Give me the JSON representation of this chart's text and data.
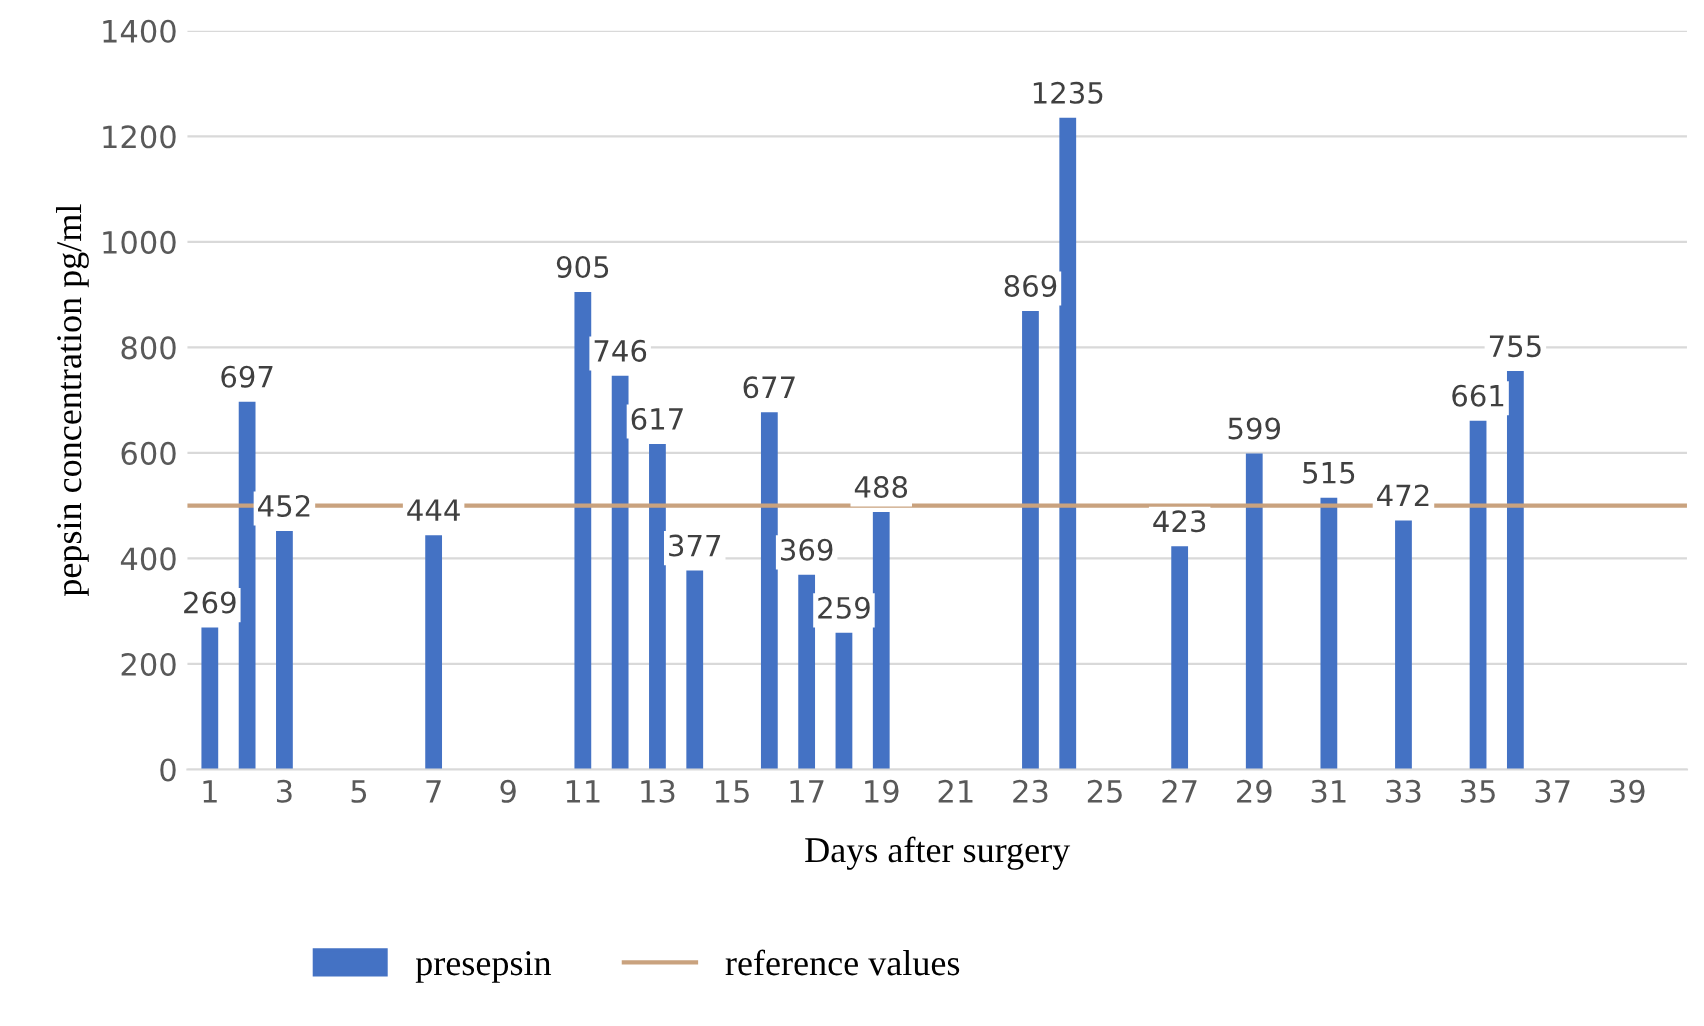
{
  "chart_data": {
    "type": "bar",
    "xlabel": "Days after surgery",
    "ylabel": "pepsin concentration pg/ml",
    "categories": [
      "1",
      null,
      "3",
      null,
      "5",
      null,
      "7",
      null,
      "9",
      null,
      "11",
      null,
      "13",
      null,
      "15",
      null,
      "17",
      null,
      "19",
      null,
      "21",
      null,
      "23",
      null,
      "25",
      null,
      "27",
      null,
      "29",
      null,
      "31",
      null,
      "33",
      null,
      "35",
      null,
      "37",
      null,
      "39",
      null
    ],
    "series": [
      {
        "name": "presepsin",
        "color": "#4472c4",
        "values": [
          269,
          697,
          452,
          null,
          null,
          null,
          444,
          null,
          null,
          null,
          905,
          746,
          617,
          377,
          null,
          677,
          369,
          259,
          488,
          null,
          null,
          null,
          869,
          1235,
          null,
          null,
          423,
          null,
          599,
          null,
          515,
          null,
          472,
          null,
          661,
          755,
          null,
          null,
          null,
          null
        ]
      }
    ],
    "ref_lines": [
      {
        "axis": "y",
        "value": 500,
        "label": "reference values",
        "color": "#c9a27e"
      }
    ],
    "ylim": [
      0,
      1400
    ],
    "yticks": [
      0,
      200,
      400,
      600,
      800,
      1000,
      1200,
      1400
    ],
    "grid": "y",
    "legend": "bottom",
    "data_labels": true
  }
}
